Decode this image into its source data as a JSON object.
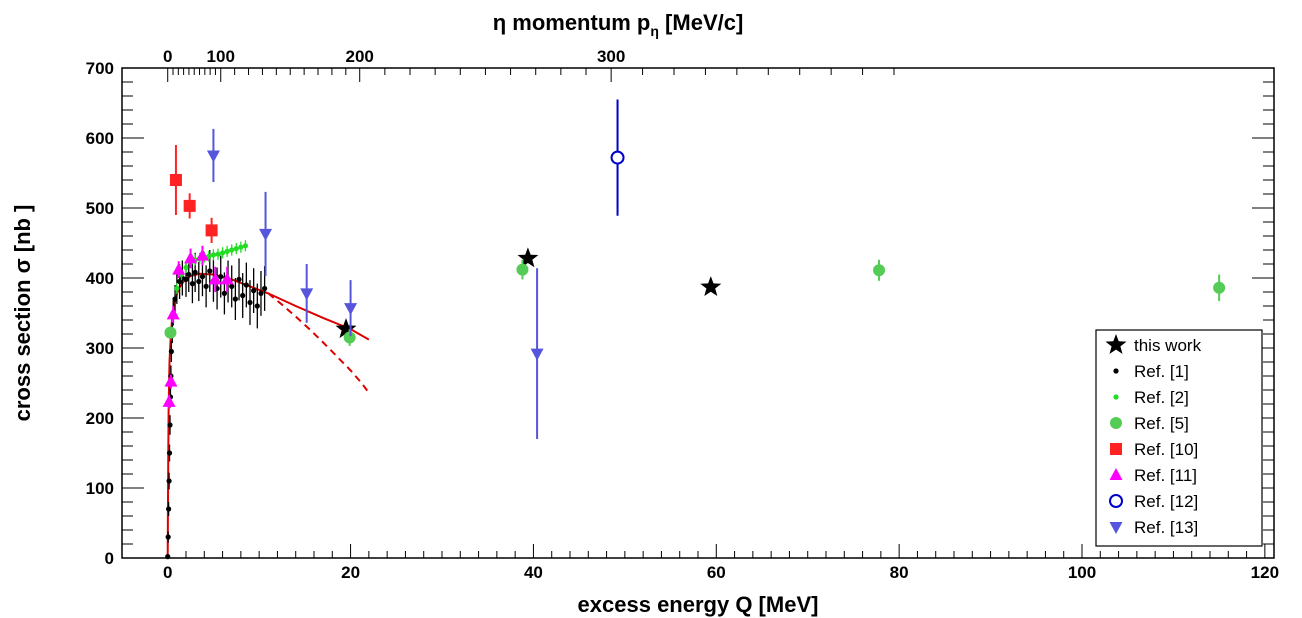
{
  "chart_data": {
    "type": "scatter",
    "title": "",
    "xlabel": "excess energy Q [MeV]",
    "ylabel": "cross section σ [nb ]",
    "top_axis": {
      "label_prefix": "η momentum p",
      "label_sub": "η",
      "label_suffix": " [MeV/c]",
      "tick_labels": [
        "0",
        "100",
        "200",
        "300"
      ],
      "tick_positions_Q": [
        0.0,
        5.8,
        21.0,
        48.5
      ]
    },
    "xlim": [
      -5,
      121
    ],
    "ylim": [
      0,
      700
    ],
    "x_ticks": [
      0,
      20,
      40,
      60,
      80,
      100,
      120
    ],
    "x_tick_labels": [
      "0",
      "20",
      "40",
      "60",
      "80",
      "100",
      "120"
    ],
    "y_ticks": [
      0,
      100,
      200,
      300,
      400,
      500,
      600,
      700
    ],
    "y_tick_labels": [
      "0",
      "100",
      "200",
      "300",
      "400",
      "500",
      "600",
      "700"
    ],
    "grid": false,
    "legend_position": "bottom-right",
    "colors": {
      "this_work": "#000000",
      "ref1": "#000000",
      "ref2": "#22dd22",
      "ref5": "#55cc55",
      "ref10": "#ff2222",
      "ref11": "#ff00ff",
      "ref12": "#0000cc",
      "ref13": "#5555dd",
      "fit": "#dd0000"
    },
    "series": [
      {
        "name": "this work",
        "marker": "star",
        "color": "#000000",
        "points": [
          [
            19.5,
            327,
            0
          ],
          [
            39.4,
            428,
            0
          ],
          [
            59.4,
            387,
            0
          ]
        ]
      },
      {
        "name": "Ref. [1]",
        "marker": "small-dot",
        "color": "#000000",
        "points": [
          [
            0.0,
            2,
            3
          ],
          [
            0.05,
            30,
            8
          ],
          [
            0.1,
            70,
            10
          ],
          [
            0.15,
            110,
            12
          ],
          [
            0.2,
            150,
            12
          ],
          [
            0.25,
            190,
            14
          ],
          [
            0.3,
            230,
            15
          ],
          [
            0.35,
            260,
            15
          ],
          [
            0.4,
            295,
            15
          ],
          [
            0.5,
            325,
            18
          ],
          [
            0.6,
            350,
            18
          ],
          [
            0.8,
            370,
            20
          ],
          [
            1.0,
            385,
            22
          ],
          [
            1.3,
            395,
            25
          ],
          [
            1.6,
            400,
            25
          ],
          [
            2.0,
            398,
            25
          ],
          [
            2.3,
            405,
            25
          ],
          [
            2.7,
            392,
            28
          ],
          [
            3.0,
            408,
            28
          ],
          [
            3.4,
            395,
            28
          ],
          [
            3.8,
            402,
            28
          ],
          [
            4.2,
            388,
            30
          ],
          [
            4.6,
            410,
            30
          ],
          [
            5.0,
            396,
            30
          ],
          [
            5.4,
            385,
            30
          ],
          [
            5.8,
            402,
            30
          ],
          [
            6.2,
            378,
            30
          ],
          [
            6.6,
            395,
            30
          ],
          [
            7.0,
            388,
            30
          ],
          [
            7.4,
            370,
            30
          ],
          [
            7.8,
            398,
            30
          ],
          [
            8.2,
            375,
            32
          ],
          [
            8.6,
            390,
            32
          ],
          [
            9.0,
            365,
            32
          ],
          [
            9.4,
            382,
            32
          ],
          [
            9.8,
            360,
            32
          ],
          [
            10.2,
            378,
            32
          ],
          [
            10.6,
            385,
            32
          ]
        ]
      },
      {
        "name": "Ref. [2]",
        "marker": "small-dot",
        "color": "#22dd22",
        "points": [
          [
            0.5,
            345,
            8
          ],
          [
            1.0,
            385,
            8
          ],
          [
            1.5,
            405,
            8
          ],
          [
            2.0,
            415,
            8
          ],
          [
            2.5,
            422,
            8
          ],
          [
            3.0,
            426,
            8
          ],
          [
            3.5,
            428,
            8
          ],
          [
            4.0,
            430,
            8
          ],
          [
            4.5,
            431,
            8
          ],
          [
            5.0,
            433,
            8
          ],
          [
            5.5,
            434,
            8
          ],
          [
            6.0,
            436,
            8
          ],
          [
            6.5,
            438,
            8
          ],
          [
            7.0,
            440,
            8
          ],
          [
            7.5,
            442,
            8
          ],
          [
            8.0,
            444,
            8
          ],
          [
            8.5,
            446,
            8
          ]
        ]
      },
      {
        "name": "Ref. [5]",
        "marker": "circle",
        "color": "#55cc55",
        "points": [
          [
            0.3,
            322,
            0
          ],
          [
            19.9,
            315,
            12
          ],
          [
            38.8,
            412,
            14
          ],
          [
            77.8,
            411,
            15
          ],
          [
            115.0,
            386,
            19
          ]
        ]
      },
      {
        "name": "Ref. [10]",
        "marker": "square",
        "color": "#ff2222",
        "points": [
          [
            0.9,
            540,
            50
          ],
          [
            2.4,
            503,
            18
          ],
          [
            4.8,
            468,
            18
          ]
        ]
      },
      {
        "name": "Ref. [11]",
        "marker": "triangle-up",
        "color": "#ff00ff",
        "points": [
          [
            0.15,
            223,
            10
          ],
          [
            0.35,
            252,
            10
          ],
          [
            0.6,
            348,
            12
          ],
          [
            1.2,
            412,
            12
          ],
          [
            2.5,
            428,
            14
          ],
          [
            3.8,
            432,
            14
          ],
          [
            5.2,
            398,
            18
          ],
          [
            6.5,
            398,
            18
          ]
        ]
      },
      {
        "name": "Ref. [12]",
        "marker": "open-circle",
        "color": "#0000cc",
        "points": [
          [
            49.2,
            572,
            83
          ]
        ]
      },
      {
        "name": "Ref. [13]",
        "marker": "triangle-down",
        "color": "#5555dd",
        "points": [
          [
            5.0,
            575,
            38
          ],
          [
            10.7,
            463,
            60
          ],
          [
            15.2,
            378,
            42
          ],
          [
            20.0,
            357,
            40
          ],
          [
            40.4,
            292,
            122
          ]
        ]
      }
    ],
    "fits": [
      {
        "style": "solid",
        "color": "#dd0000",
        "points": [
          [
            0,
            0
          ],
          [
            0.02,
            60
          ],
          [
            0.05,
            130
          ],
          [
            0.1,
            210
          ],
          [
            0.2,
            280
          ],
          [
            0.35,
            320
          ],
          [
            0.5,
            345
          ],
          [
            0.8,
            368
          ],
          [
            1.2,
            385
          ],
          [
            1.8,
            396
          ],
          [
            2.5,
            403
          ],
          [
            3.5,
            406
          ],
          [
            5.0,
            405
          ],
          [
            7.0,
            398
          ],
          [
            9.0,
            388
          ],
          [
            11.0,
            378
          ],
          [
            14.0,
            360
          ],
          [
            17.0,
            343
          ],
          [
            20.0,
            327
          ],
          [
            22.0,
            312
          ]
        ]
      },
      {
        "style": "dashed",
        "color": "#dd0000",
        "points": [
          [
            11.0,
            378
          ],
          [
            12.5,
            362
          ],
          [
            14.0,
            345
          ],
          [
            15.5,
            327
          ],
          [
            17.0,
            308
          ],
          [
            18.5,
            288
          ],
          [
            20.0,
            268
          ],
          [
            21.2,
            250
          ],
          [
            22.0,
            236
          ]
        ]
      }
    ]
  },
  "legend": {
    "items": [
      {
        "label": "this work",
        "marker": "star",
        "color": "#000000"
      },
      {
        "label": "Ref. [1]",
        "marker": "small-dot",
        "color": "#000000"
      },
      {
        "label": "Ref. [2]",
        "marker": "small-dot",
        "color": "#22dd22"
      },
      {
        "label": "Ref. [5]",
        "marker": "circle",
        "color": "#55cc55"
      },
      {
        "label": "Ref. [10]",
        "marker": "square",
        "color": "#ff2222"
      },
      {
        "label": "Ref. [11]",
        "marker": "triangle-up",
        "color": "#ff00ff"
      },
      {
        "label": "Ref. [12]",
        "marker": "open-circle",
        "color": "#0000cc"
      },
      {
        "label": "Ref. [13]",
        "marker": "triangle-down",
        "color": "#5555dd"
      }
    ]
  }
}
